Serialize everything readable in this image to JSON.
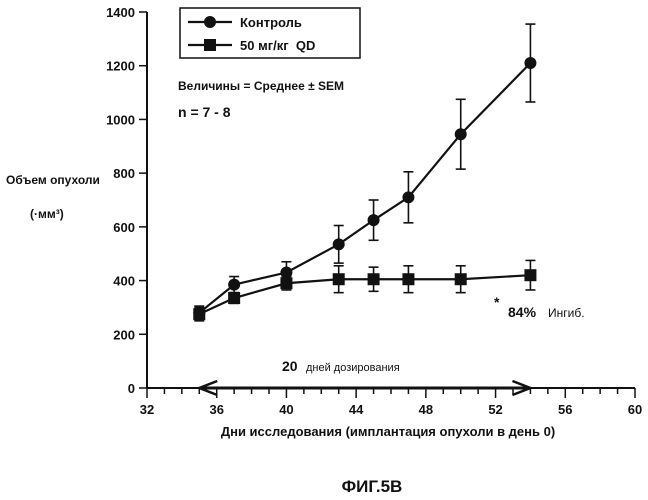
{
  "chart_data": {
    "type": "line",
    "ylabel_line1": "Объем опухоли",
    "ylabel_line2": "(·мм³)",
    "xlabel": "Дни исследования (имплантация опухоли в день 0)",
    "caption": "ФИГ.5В",
    "xlim": [
      32,
      60
    ],
    "ylim": [
      0,
      1400
    ],
    "x_ticks": [
      32,
      36,
      40,
      44,
      48,
      52,
      56,
      60
    ],
    "y_ticks": [
      0,
      200,
      400,
      600,
      800,
      1000,
      1200,
      1400
    ],
    "x_minor_step": 1,
    "grid": false,
    "legend_position": "top-left",
    "series": [
      {
        "name": "Контроль",
        "marker": "circle",
        "points": [
          {
            "x": 35,
            "y": 280,
            "err": 25
          },
          {
            "x": 37,
            "y": 385,
            "err": 30
          },
          {
            "x": 40,
            "y": 430,
            "err": 40
          },
          {
            "x": 43,
            "y": 535,
            "err": 70
          },
          {
            "x": 45,
            "y": 625,
            "err": 75
          },
          {
            "x": 47,
            "y": 710,
            "err": 95
          },
          {
            "x": 50,
            "y": 945,
            "err": 130
          },
          {
            "x": 54,
            "y": 1210,
            "err": 145
          }
        ]
      },
      {
        "name": "50 мг/кг  QD",
        "marker": "square",
        "points": [
          {
            "x": 35,
            "y": 275,
            "err": 25
          },
          {
            "x": 37,
            "y": 335,
            "err": 20
          },
          {
            "x": 40,
            "y": 390,
            "err": 25
          },
          {
            "x": 43,
            "y": 405,
            "err": 50
          },
          {
            "x": 45,
            "y": 405,
            "err": 45
          },
          {
            "x": 47,
            "y": 405,
            "err": 50
          },
          {
            "x": 50,
            "y": 405,
            "err": 50
          },
          {
            "x": 54,
            "y": 420,
            "err": 55
          }
        ]
      }
    ],
    "annotations": {
      "stats_text": "Величины = Среднее ± SEM",
      "n_text": "n = 7 - 8",
      "inhibition_star": "*",
      "inhibition_pct": "84%",
      "inhibition_word": "Ингиб.",
      "dosing_text_number": "20",
      "dosing_text_words": "дней дозирования",
      "dosing_range": [
        35,
        54
      ],
      "dosing_level": 0
    }
  }
}
